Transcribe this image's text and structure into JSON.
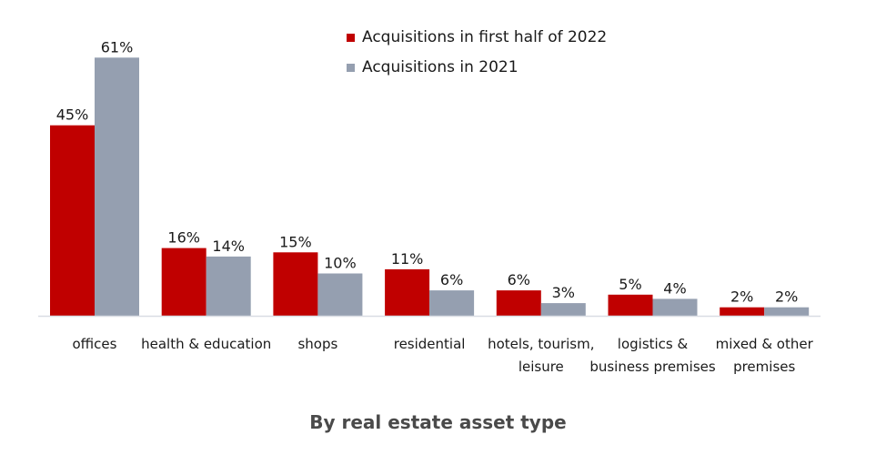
{
  "chart_data": {
    "type": "bar",
    "title": "By real estate asset type",
    "xlabel": "",
    "ylabel": "",
    "ylim": [
      0,
      75
    ],
    "grid": false,
    "legend_position": "top-center",
    "categories": [
      [
        "offices"
      ],
      [
        "health & education"
      ],
      [
        "shops"
      ],
      [
        "residential"
      ],
      [
        "hotels, tourism,",
        "leisure"
      ],
      [
        "logistics &",
        "business premises"
      ],
      [
        "mixed & other",
        "premises"
      ]
    ],
    "series": [
      {
        "name": "Acquisitions in first half of 2022",
        "color": "#c00000",
        "values": [
          45,
          16,
          15,
          11,
          6,
          5,
          2
        ],
        "labels": [
          "45%",
          "16%",
          "15%",
          "11%",
          "6%",
          "5%",
          "2%"
        ]
      },
      {
        "name": "Acquisitions in 2021",
        "color": "#959fb0",
        "values": [
          61,
          14,
          10,
          6,
          3,
          4,
          2
        ],
        "labels": [
          "61%",
          "14%",
          "10%",
          "6%",
          "3%",
          "4%",
          "2%"
        ]
      }
    ]
  }
}
